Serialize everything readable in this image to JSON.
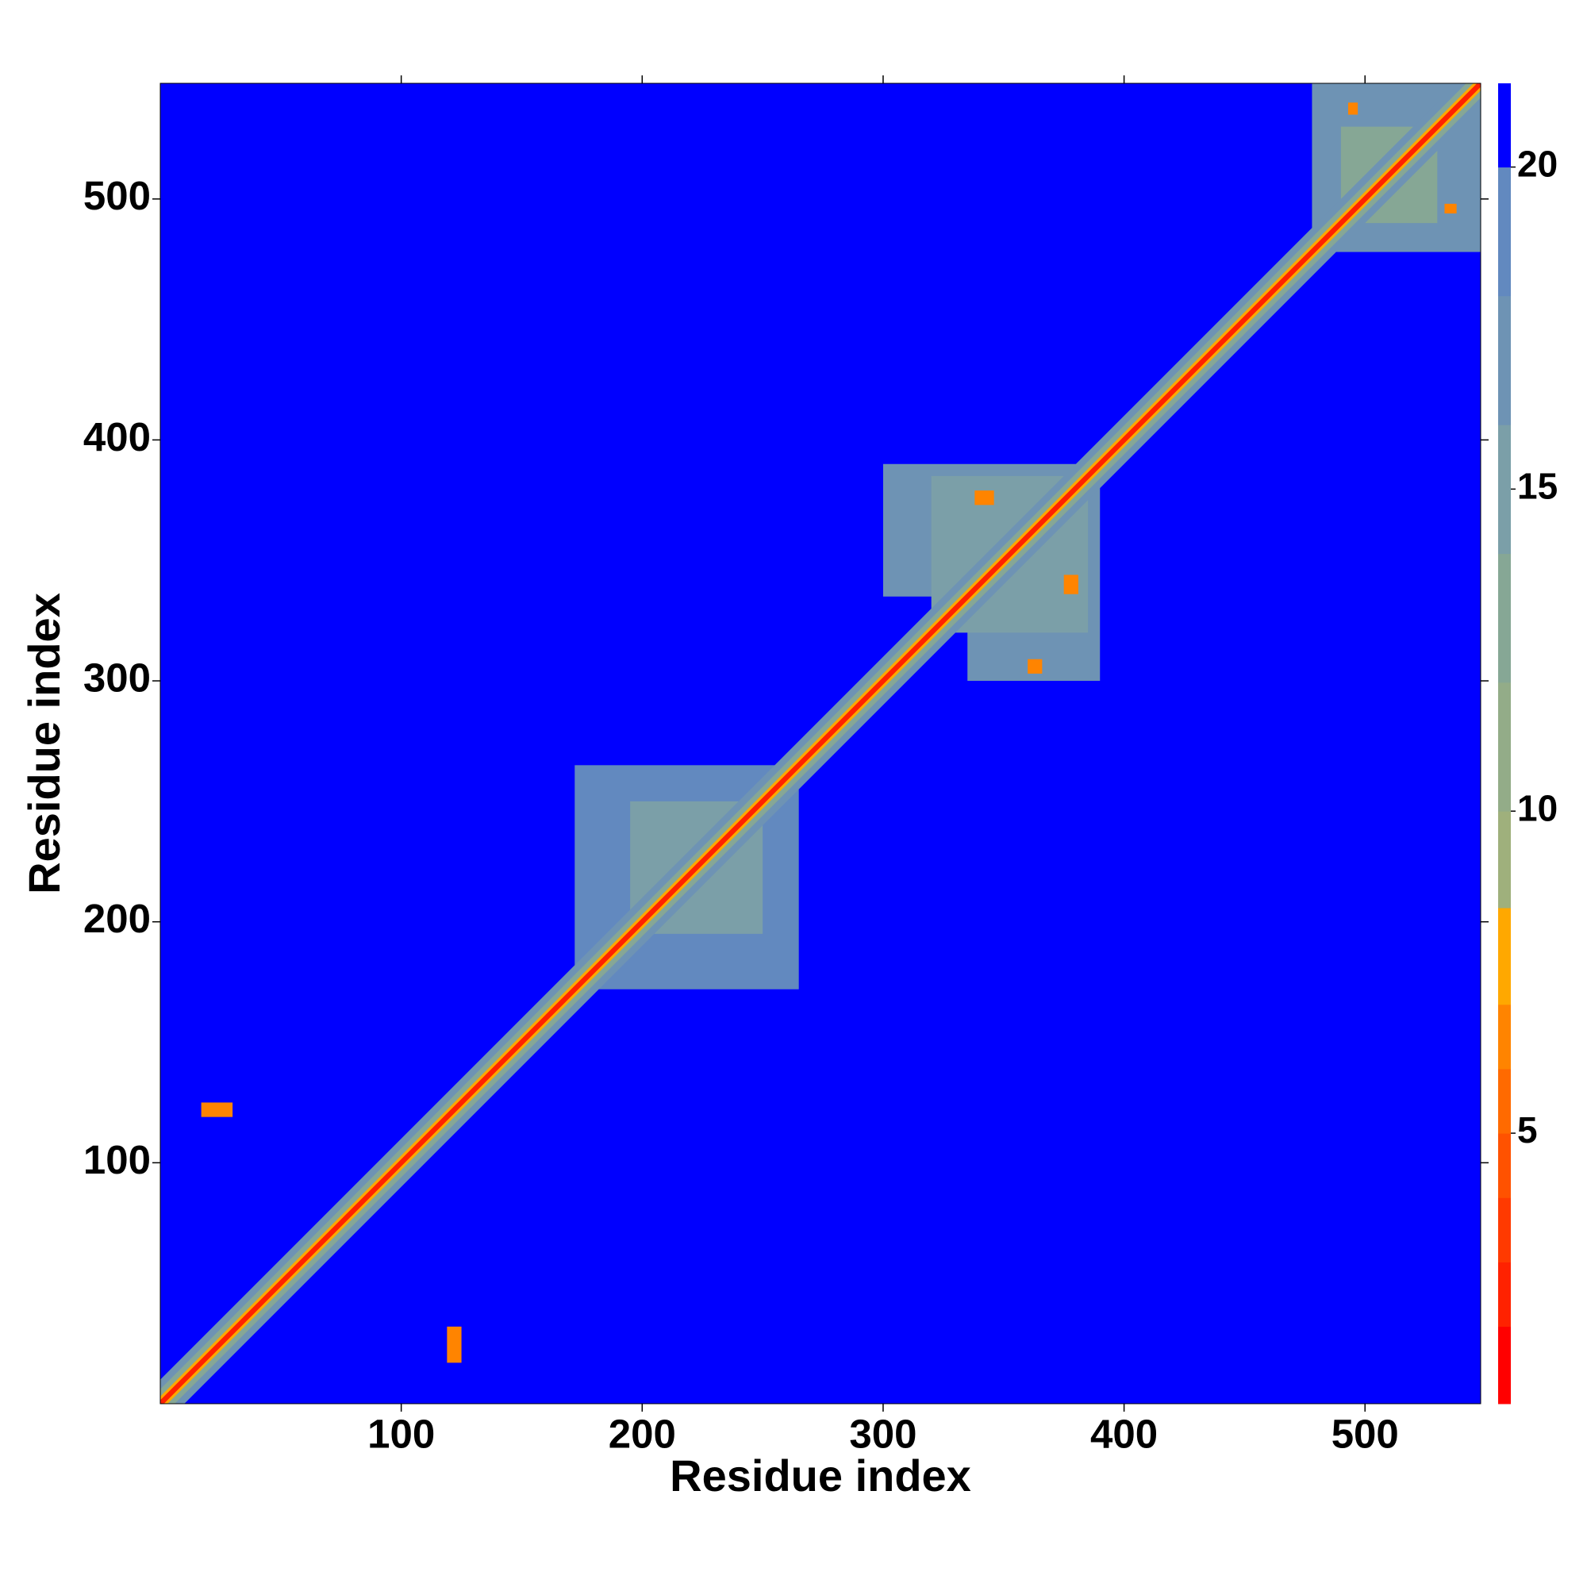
{
  "chart_data": {
    "type": "heatmap",
    "xlabel": "Residue index",
    "ylabel": "Residue index",
    "xlim": [
      0,
      548
    ],
    "ylim": [
      0,
      548
    ],
    "xticks": [
      100,
      200,
      300,
      400,
      500
    ],
    "yticks": [
      100,
      200,
      300,
      400,
      500
    ],
    "background_value": 21,
    "colorbar": {
      "levels": [
        0.8,
        2,
        3,
        4,
        5,
        6,
        7,
        8.5,
        10,
        12,
        14,
        16,
        18,
        20,
        21.3
      ],
      "colors": [
        "#ff0000",
        "#ff2200",
        "#ff3a00",
        "#ff5200",
        "#ff6a00",
        "#ff8400",
        "#ffa800",
        "#9fb07c",
        "#93ac88",
        "#86a795",
        "#7b9fa8",
        "#6e93b4",
        "#6289bf",
        "#0000ff"
      ],
      "ticks": [
        5,
        10,
        15,
        20
      ]
    },
    "regions": [
      {
        "x": [
          172,
          265
        ],
        "y": [
          172,
          265
        ],
        "value": 18.5
      },
      {
        "x": [
          195,
          250
        ],
        "y": [
          195,
          250
        ],
        "value": 15
      },
      {
        "x": [
          335,
          390
        ],
        "y": [
          300,
          385
        ],
        "value": 17
      },
      {
        "x": [
          300,
          385
        ],
        "y": [
          335,
          390
        ],
        "value": 17
      },
      {
        "x": [
          320,
          385
        ],
        "y": [
          320,
          385
        ],
        "value": 14
      },
      {
        "x": [
          478,
          548
        ],
        "y": [
          478,
          548
        ],
        "value": 17
      },
      {
        "x": [
          490,
          530
        ],
        "y": [
          490,
          530
        ],
        "value": 13
      },
      {
        "x": [
          17,
          30
        ],
        "y": [
          119,
          125
        ],
        "value": 6
      },
      {
        "x": [
          119,
          125
        ],
        "y": [
          17,
          32
        ],
        "value": 6
      },
      {
        "x": [
          360,
          366
        ],
        "y": [
          303,
          309
        ],
        "value": 6
      },
      {
        "x": [
          338,
          346
        ],
        "y": [
          373,
          379
        ],
        "value": 6
      },
      {
        "x": [
          375,
          381
        ],
        "y": [
          336,
          344
        ],
        "value": 6
      },
      {
        "x": [
          493,
          497
        ],
        "y": [
          535,
          540
        ],
        "value": 6
      },
      {
        "x": [
          533,
          538
        ],
        "y": [
          494,
          498
        ],
        "value": 6
      }
    ],
    "diagonal_bands": [
      {
        "offset": 10,
        "value": 17
      },
      {
        "offset": 6,
        "value": 12
      },
      {
        "offset": 3,
        "value": 7
      },
      {
        "offset": 1.5,
        "value": 2
      }
    ]
  }
}
